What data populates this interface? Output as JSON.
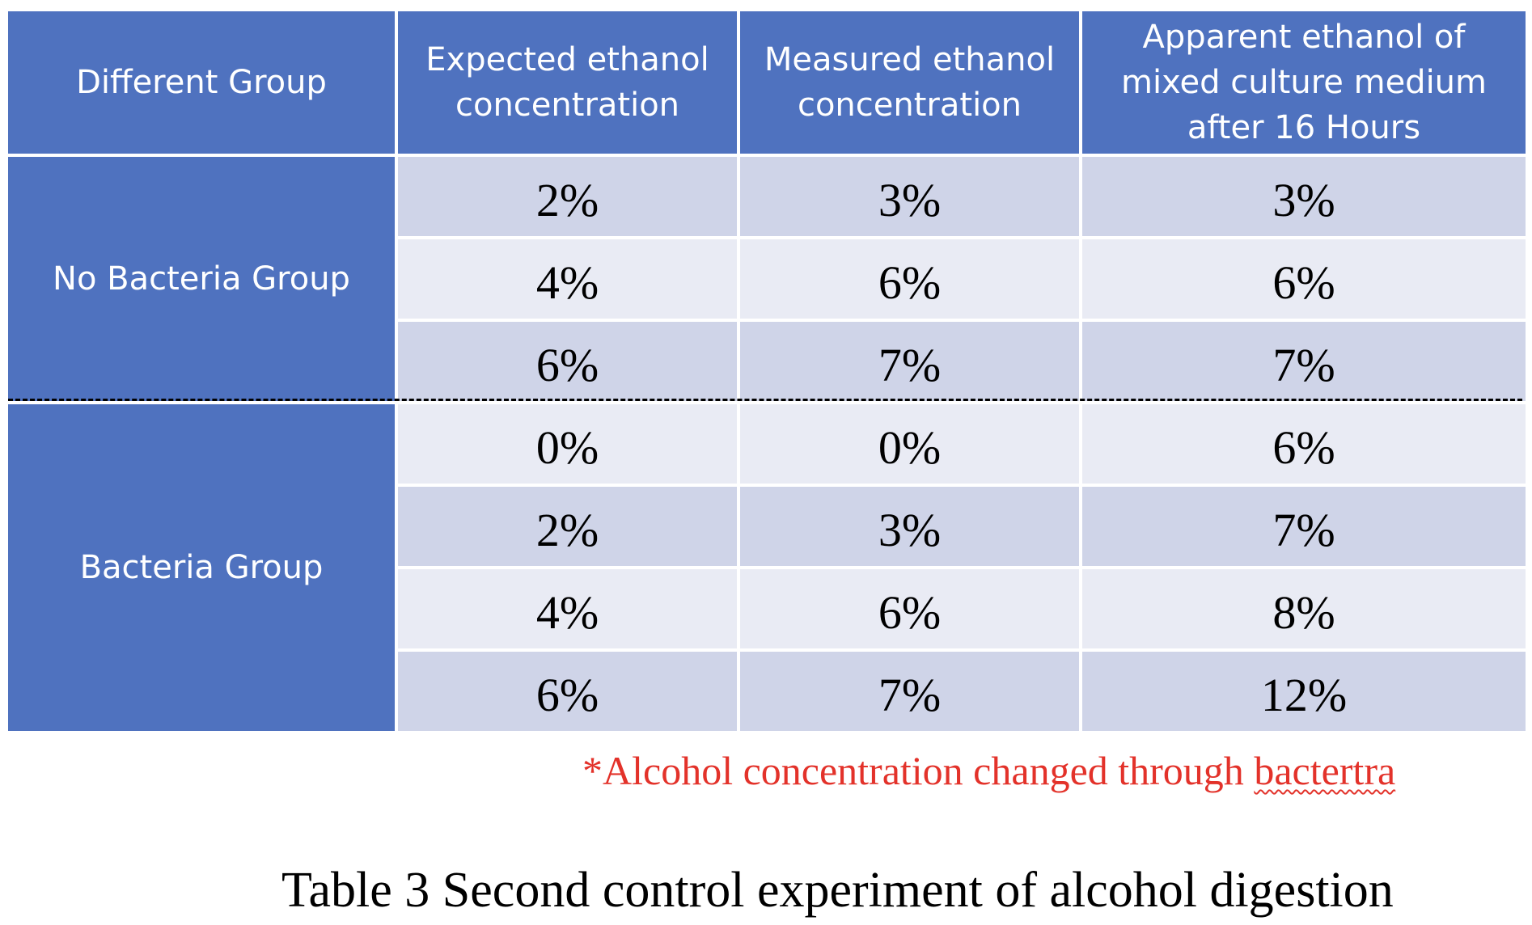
{
  "table": {
    "headers": [
      "Different Group",
      "Expected ethanol\nconcentration",
      "Measured ethanol\nconcentration",
      "Apparent ethanol of\nmixed culture medium\nafter 16 Hours"
    ],
    "groups": [
      {
        "label": "No Bacteria Group",
        "rows": [
          [
            "2%",
            "3%",
            "3%"
          ],
          [
            "4%",
            "6%",
            "6%"
          ],
          [
            "6%",
            "7%",
            "7%"
          ]
        ]
      },
      {
        "label": "Bacteria Group",
        "rows": [
          [
            "0%",
            "0%",
            "6%"
          ],
          [
            "2%",
            "3%",
            "7%"
          ],
          [
            "4%",
            "6%",
            "8%"
          ],
          [
            "6%",
            "7%",
            "12%"
          ]
        ]
      }
    ],
    "colors": {
      "header_bg": "#4f72bf",
      "row_shade_a": "#cfd4e8",
      "row_shade_b": "#e9ebf4"
    }
  },
  "note": {
    "prefix": "*Alcohol concentration changed through ",
    "flagged_word": "bactertra",
    "color": "#e3322a"
  },
  "caption": "Table 3  Second control experiment of alcohol digestion"
}
